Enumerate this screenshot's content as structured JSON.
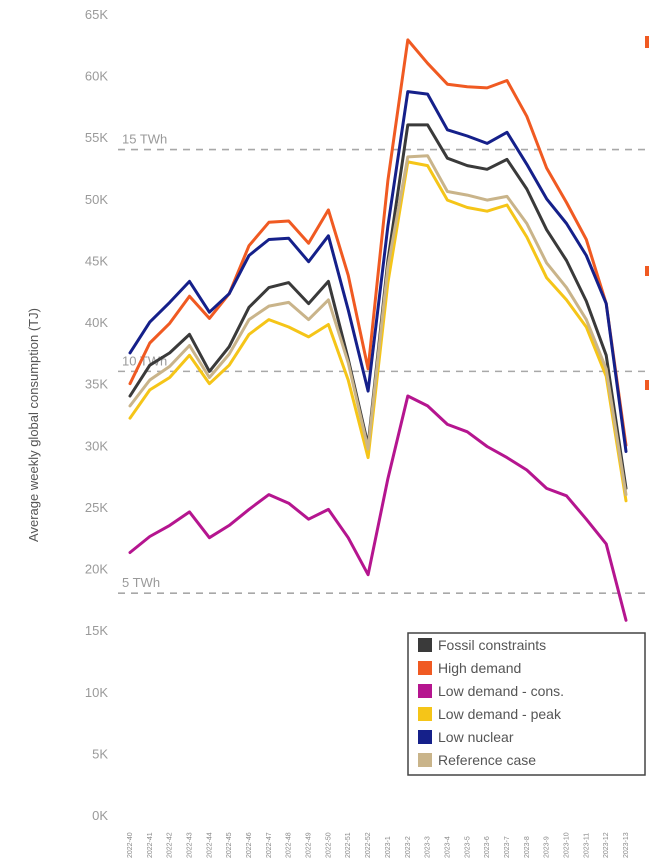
{
  "chart_data": {
    "type": "line",
    "title": "",
    "xlabel": "",
    "ylabel": "Average weekly global consumption (TJ)",
    "ylim": [
      0,
      65000
    ],
    "y_ticks": [
      "0K",
      "5K",
      "10K",
      "15K",
      "20K",
      "25K",
      "30K",
      "35K",
      "40K",
      "45K",
      "50K",
      "55K",
      "60K",
      "65K"
    ],
    "grid": false,
    "legend_position": "bottom-right",
    "categories": [
      "2022-40",
      "2022-41",
      "2022-42",
      "2022-43",
      "2022-44",
      "2022-45",
      "2022-46",
      "2022-47",
      "2022-48",
      "2022-49",
      "2022-50",
      "2022-51",
      "2022-52",
      "2023-1",
      "2023-2",
      "2023-3",
      "2023-4",
      "2023-5",
      "2023-6",
      "2023-7",
      "2023-8",
      "2023-9",
      "2023-10",
      "2023-11",
      "2023-12",
      "2023-13"
    ],
    "series": [
      {
        "name": "Fossil constraints",
        "color": "#3a3a3a",
        "values": [
          34000,
          36500,
          37500,
          39000,
          36000,
          38000,
          41200,
          42800,
          43200,
          41500,
          43300,
          37000,
          30000,
          45000,
          56000,
          56000,
          53300,
          52700,
          52400,
          53200,
          50800,
          47500,
          45000,
          41700,
          37300,
          26500
        ]
      },
      {
        "name": "High demand",
        "color": "#f05a22",
        "values": [
          35000,
          38300,
          39900,
          42100,
          40300,
          42300,
          46200,
          48100,
          48200,
          46400,
          49100,
          43800,
          36200,
          51500,
          62900,
          61000,
          59300,
          59100,
          59000,
          59600,
          56700,
          52500,
          49700,
          46700,
          41500,
          30000
        ]
      },
      {
        "name": "Low demand - cons.",
        "color": "#b5158f",
        "values": [
          21300,
          22600,
          23500,
          24600,
          22500,
          23500,
          24800,
          26000,
          25300,
          24000,
          24800,
          22500,
          19500,
          27300,
          34000,
          33200,
          31700,
          31100,
          29900,
          29000,
          28000,
          26500,
          25900,
          24000,
          22000,
          15800
        ]
      },
      {
        "name": "Low demand - peak",
        "color": "#f5c518",
        "values": [
          32200,
          34500,
          35500,
          37300,
          35000,
          36500,
          39000,
          40200,
          39600,
          38800,
          39800,
          35300,
          29000,
          43200,
          53000,
          52700,
          49900,
          49300,
          49000,
          49500,
          46900,
          43600,
          41800,
          39600,
          35600,
          25500
        ]
      },
      {
        "name": "Low nuclear",
        "color": "#15208a",
        "values": [
          37500,
          40000,
          41600,
          43300,
          40800,
          42300,
          45400,
          46700,
          46800,
          44900,
          47000,
          41000,
          34400,
          47800,
          58700,
          58500,
          55600,
          55100,
          54500,
          55400,
          52800,
          50000,
          48000,
          45400,
          41500,
          29500
        ]
      },
      {
        "name": "Reference case",
        "color": "#c9b48a",
        "values": [
          33200,
          35300,
          36400,
          38100,
          35500,
          37400,
          40200,
          41300,
          41600,
          40200,
          41800,
          36700,
          29700,
          44500,
          53400,
          53500,
          50600,
          50300,
          49900,
          50200,
          48000,
          44800,
          42800,
          40200,
          36200,
          26000
        ]
      }
    ],
    "reference_lines": [
      {
        "label": "15 TWh",
        "value": 54000
      },
      {
        "label": "10 TWh",
        "value": 36000
      },
      {
        "label": "5 TWh",
        "value": 18000
      }
    ]
  }
}
